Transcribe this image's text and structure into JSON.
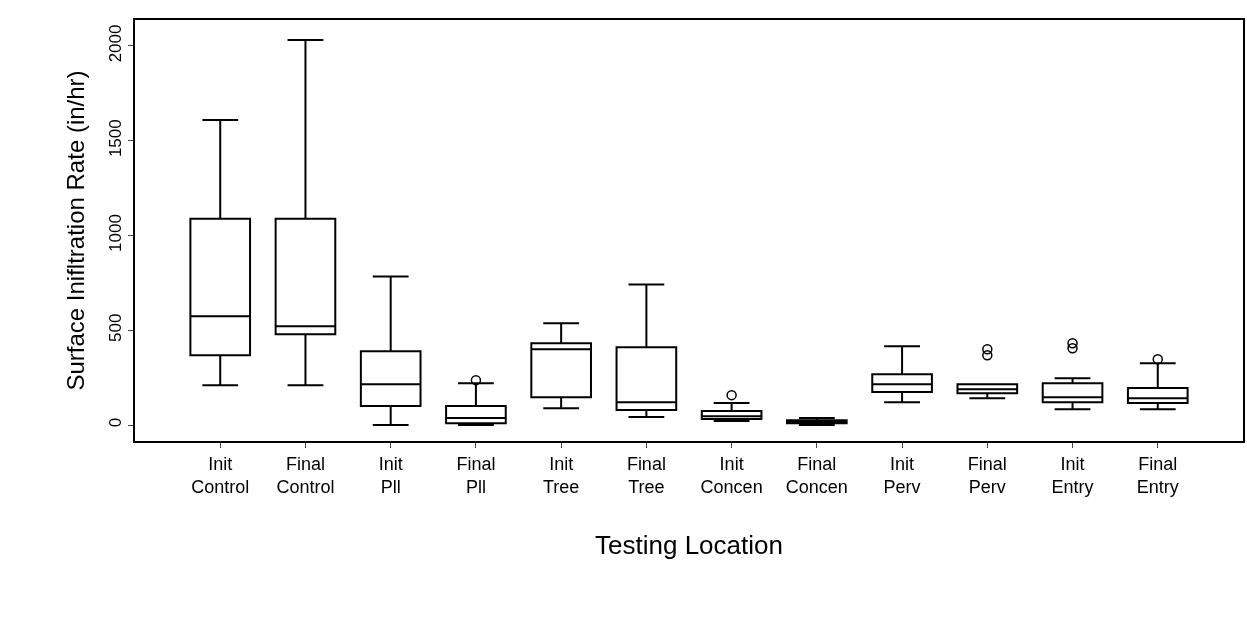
{
  "chart_data": {
    "type": "box",
    "xlabel": "Testing Location",
    "ylabel": "Surface Inifltration Rate (in/hr)",
    "categories": [
      "Init\nControl",
      "Final\nControl",
      "Init\nPll",
      "Final\nPll",
      "Init\nTree",
      "Final\nTree",
      "Init\nConcen",
      "Final\nConcen",
      "Init\nPerv",
      "Final\nPerv",
      "Init\nEntry",
      "Final\nEntry"
    ],
    "boxes": [
      {
        "low": 210,
        "q1": 368,
        "median": 574,
        "q3": 1089,
        "high": 1610
      },
      {
        "low": 210,
        "q1": 479,
        "median": 521,
        "q3": 1089,
        "high": 2032
      },
      {
        "low": 0,
        "q1": 100,
        "median": 216,
        "q3": 389,
        "high": 784
      },
      {
        "low": 0,
        "q1": 10,
        "median": 37,
        "q3": 100,
        "high": 221,
        "outliers": [
          237
        ]
      },
      {
        "low": 89,
        "q1": 147,
        "median": 400,
        "q3": 432,
        "high": 537
      },
      {
        "low": 42,
        "q1": 79,
        "median": 121,
        "q3": 411,
        "high": 742
      },
      {
        "low": 21,
        "q1": 32,
        "median": 47,
        "q3": 74,
        "high": 116,
        "outliers": [
          158
        ]
      },
      {
        "low": 0,
        "q1": 10,
        "median": 16,
        "q3": 26,
        "high": 37
      },
      {
        "low": 121,
        "q1": 174,
        "median": 216,
        "q3": 268,
        "high": 416
      },
      {
        "low": 142,
        "q1": 168,
        "median": 189,
        "q3": 216,
        "high": 216,
        "outliers": [
          368,
          400
        ]
      },
      {
        "low": 84,
        "q1": 121,
        "median": 147,
        "q3": 221,
        "high": 247,
        "outliers": [
          405,
          432
        ]
      },
      {
        "low": 84,
        "q1": 116,
        "median": 142,
        "q3": 195,
        "high": 326,
        "outliers": [
          347
        ]
      }
    ],
    "color": "#000000",
    "ylim": [
      -84,
      2137
    ],
    "yticks": [
      0,
      500,
      1000,
      1500,
      2000
    ]
  }
}
